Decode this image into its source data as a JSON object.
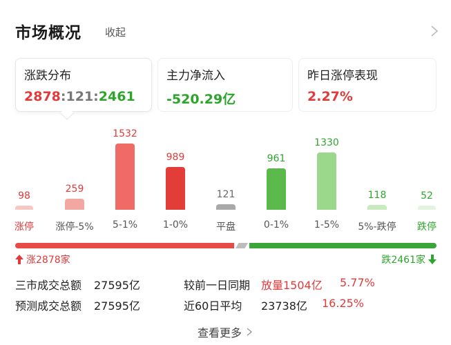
{
  "header": {
    "title": "市场概况",
    "collapse_label": "收起"
  },
  "cards": [
    {
      "label": "涨跌分布",
      "up": "2878",
      "sep1": ":",
      "flat": "121",
      "sep2": ":",
      "down": "2461"
    },
    {
      "label": "主力净流入",
      "value": "-520.29亿"
    },
    {
      "label": "昨日涨停表现",
      "value": "2.27%"
    }
  ],
  "distribution": {
    "bars": [
      {
        "label": "涨停",
        "value": "98",
        "count": 98,
        "color": "#f7c7c4",
        "value_color": "#e03a3a",
        "label_color": "#e03a3a"
      },
      {
        "label": "涨停-5%",
        "value": "259",
        "count": 259,
        "color": "#f3a7a3",
        "value_color": "#e03a3a",
        "label_color": "#555555"
      },
      {
        "label": "5-1%",
        "value": "1532",
        "count": 1532,
        "color": "#f06b66",
        "value_color": "#e03a3a",
        "label_color": "#555555"
      },
      {
        "label": "1-0%",
        "value": "989",
        "count": 989,
        "color": "#e33d3a",
        "value_color": "#e03a3a",
        "label_color": "#555555"
      },
      {
        "label": "平盘",
        "value": "121",
        "count": 121,
        "color": "#a9a9a9",
        "value_color": "#666666",
        "label_color": "#555555"
      },
      {
        "label": "0-1%",
        "value": "961",
        "count": 961,
        "color": "#5cb94b",
        "value_color": "#2da52b",
        "label_color": "#555555"
      },
      {
        "label": "1-5%",
        "value": "1330",
        "count": 1330,
        "color": "#9bd88c",
        "value_color": "#2da52b",
        "label_color": "#555555"
      },
      {
        "label": "5%-跌停",
        "value": "118",
        "count": 118,
        "color": "#c7eabf",
        "value_color": "#2da52b",
        "label_color": "#555555"
      },
      {
        "label": "跌停",
        "value": "52",
        "count": 52,
        "color": "#e3f4de",
        "value_color": "#2da52b",
        "label_color": "#2da52b"
      }
    ],
    "up_total": 2878,
    "flat_total": 121,
    "down_total": 2461,
    "up_text": "涨2878家",
    "down_text": "跌2461家"
  },
  "stats": {
    "turnover_label": "三市成交总额",
    "turnover_value": "27595亿",
    "compare_label": "较前一日同期",
    "compare_text": "放量1504亿",
    "compare_pct": "5.77%",
    "forecast_label": "预测成交总额",
    "forecast_value": "27595亿",
    "avg_label": "近60日平均",
    "avg_value": "23738亿",
    "avg_pct": "16.25%"
  },
  "footer": {
    "more_label": "查看更多"
  },
  "colors": {
    "up": "#e03a3a",
    "down": "#2da52b",
    "flat": "#bdbdbd"
  }
}
